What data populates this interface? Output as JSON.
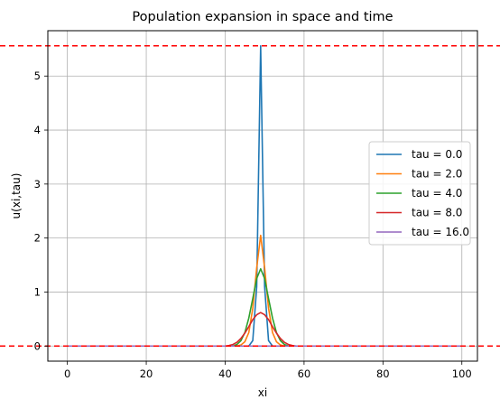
{
  "chart_data": {
    "type": "line",
    "title": "Population expansion in space and time",
    "xlabel": "xi",
    "ylabel": "u(xi,tau)",
    "xlim": [
      -4.95,
      103.95
    ],
    "ylim": [
      -0.28,
      5.84
    ],
    "xticks": [
      0,
      20,
      40,
      60,
      80,
      100
    ],
    "yticks": [
      0,
      1,
      2,
      3,
      4,
      5
    ],
    "grid": true,
    "legend_position": "center-right",
    "reference_lines": [
      {
        "y": 5.56,
        "color": "#ff0000",
        "style": "dashed"
      },
      {
        "y": 0.0,
        "color": "#ff0000",
        "style": "dashed"
      }
    ],
    "series": [
      {
        "name": "tau = 0.0",
        "color": "#1f77b4",
        "x": [
          0,
          46,
          47,
          48,
          49,
          50,
          51,
          52,
          100
        ],
        "y": [
          0,
          0.0,
          0.1,
          1.1,
          5.56,
          1.1,
          0.1,
          0.0,
          0
        ]
      },
      {
        "name": "tau = 2.0",
        "color": "#ff7f0e",
        "x": [
          0,
          43,
          44,
          45,
          46,
          47,
          48,
          49,
          50,
          51,
          52,
          53,
          54,
          55,
          100
        ],
        "y": [
          0,
          0.0,
          0.02,
          0.08,
          0.25,
          0.7,
          1.45,
          2.05,
          1.45,
          0.7,
          0.25,
          0.08,
          0.02,
          0.0,
          0
        ]
      },
      {
        "name": "tau = 4.0",
        "color": "#2ca02c",
        "x": [
          0,
          42,
          43,
          44,
          45,
          46,
          47,
          48,
          49,
          50,
          51,
          52,
          53,
          54,
          55,
          56,
          100
        ],
        "y": [
          0,
          0.0,
          0.03,
          0.1,
          0.25,
          0.52,
          0.88,
          1.25,
          1.43,
          1.25,
          0.88,
          0.52,
          0.25,
          0.1,
          0.03,
          0.0,
          0
        ]
      },
      {
        "name": "tau = 8.0",
        "color": "#d62728",
        "x": [
          0,
          40,
          41,
          42,
          43,
          44,
          45,
          46,
          47,
          48,
          49,
          50,
          51,
          52,
          53,
          54,
          55,
          56,
          57,
          58,
          100
        ],
        "y": [
          0,
          0.0,
          0.01,
          0.03,
          0.07,
          0.14,
          0.24,
          0.36,
          0.49,
          0.58,
          0.62,
          0.58,
          0.49,
          0.36,
          0.24,
          0.14,
          0.07,
          0.03,
          0.01,
          0.0,
          0
        ]
      },
      {
        "name": "tau = 16.0",
        "color": "#9467bd",
        "x": [
          0,
          100
        ],
        "y": [
          0,
          0
        ]
      }
    ]
  }
}
